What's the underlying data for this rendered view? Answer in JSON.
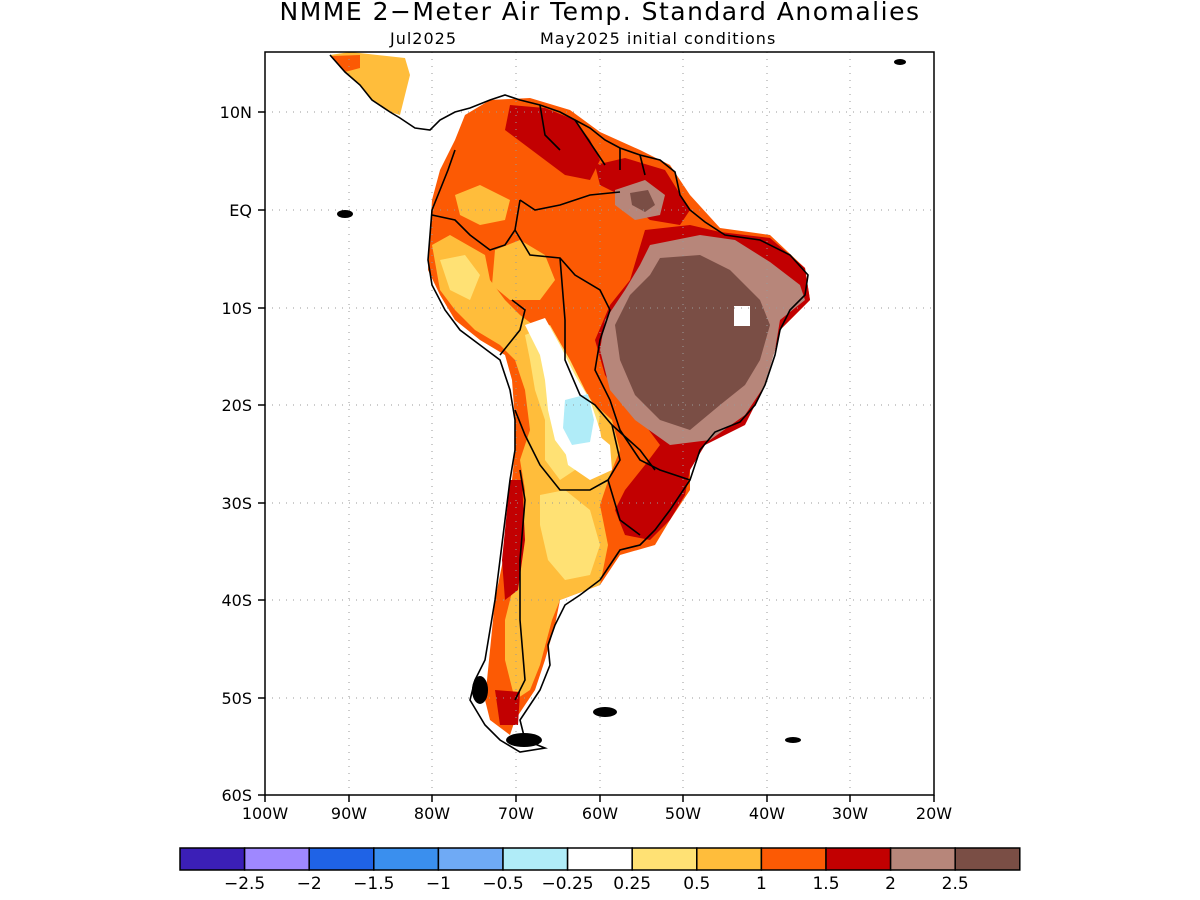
{
  "title": "NMME 2−Meter Air Temp. Standard Anomalies",
  "subtitle_left": "Jul2025",
  "subtitle_right": "May2025 initial conditions",
  "lat_labels": [
    "10N",
    "EQ",
    "10S",
    "20S",
    "30S",
    "40S",
    "50S",
    "60S"
  ],
  "lon_labels": [
    "100W",
    "90W",
    "80W",
    "70W",
    "60W",
    "50W",
    "40W",
    "30W",
    "20W"
  ],
  "colorbar": {
    "colors": [
      "#3b1fb7",
      "#9f88ff",
      "#1f63e6",
      "#3a8fee",
      "#6faaf5",
      "#b0ecf8",
      "#ffffff",
      "#ffe174",
      "#ffbd3b",
      "#fc5a04",
      "#c20001",
      "#b7867a",
      "#7a4e45"
    ],
    "labels": [
      "−2.5",
      "−2",
      "−1.5",
      "−1",
      "−0.5",
      "−0.25",
      "0.25",
      "0.5",
      "1",
      "1.5",
      "2",
      "2.5"
    ]
  },
  "legend_colors": {
    "lt_0_5": "#ffe174",
    "0_5_1": "#ffbd3b",
    "1_1_5": "#fc5a04",
    "1_5_2": "#c20001",
    "2_2_5": "#b7867a",
    "gt_2_5": "#7a4e45",
    "neg": "#6faaf5"
  }
}
